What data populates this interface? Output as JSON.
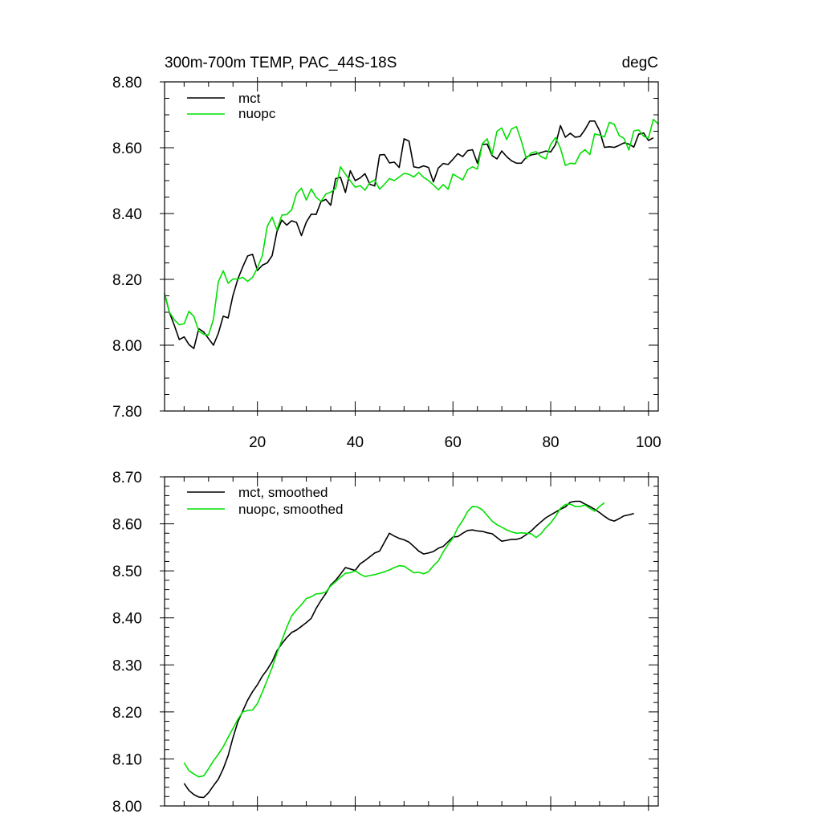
{
  "colors": {
    "mct": "#000000",
    "nuopc": "#00e000",
    "background": "#ffffff"
  },
  "chart_data": [
    {
      "type": "line",
      "title": "300m-700m TEMP, PAC_44S-18S",
      "units": "degC",
      "xlabel": "",
      "ylabel": "",
      "xlim": [
        1,
        102
      ],
      "ylim": [
        7.8,
        8.8
      ],
      "xticks": [
        20,
        40,
        60,
        80,
        100
      ],
      "xtick_labels": [
        "20",
        "40",
        "60",
        "80",
        "100"
      ],
      "yticks": [
        7.8,
        8.0,
        8.2,
        8.4,
        8.6,
        8.8
      ],
      "ytick_labels": [
        "7.80",
        "8.00",
        "8.20",
        "8.40",
        "8.60",
        "8.80"
      ],
      "legend_position": "top-left",
      "x_start": 1,
      "series": [
        {
          "name": "mct",
          "color": "#000000",
          "values": [
            8.157,
            8.099,
            8.06,
            8.017,
            8.025,
            8.002,
            7.99,
            8.05,
            8.04,
            8.02,
            8.0,
            8.036,
            8.088,
            8.083,
            8.151,
            8.201,
            8.238,
            8.271,
            8.276,
            8.227,
            8.243,
            8.25,
            8.272,
            8.345,
            8.38,
            8.365,
            8.378,
            8.373,
            8.333,
            8.374,
            8.398,
            8.397,
            8.436,
            8.443,
            8.425,
            8.506,
            8.51,
            8.464,
            8.53,
            8.5,
            8.508,
            8.521,
            8.489,
            8.484,
            8.578,
            8.579,
            8.554,
            8.556,
            8.54,
            8.627,
            8.62,
            8.542,
            8.539,
            8.545,
            8.54,
            8.496,
            8.538,
            8.552,
            8.549,
            8.565,
            8.582,
            8.573,
            8.591,
            8.594,
            8.553,
            8.61,
            8.611,
            8.576,
            8.566,
            8.59,
            8.573,
            8.56,
            8.553,
            8.553,
            8.571,
            8.578,
            8.581,
            8.585,
            8.59,
            8.587,
            8.61,
            8.667,
            8.632,
            8.644,
            8.632,
            8.634,
            8.655,
            8.681,
            8.681,
            8.652,
            8.601,
            8.603,
            8.601,
            8.607,
            8.615,
            8.611,
            8.602,
            8.641,
            8.645,
            8.622,
            8.63
          ]
        },
        {
          "name": "nuopc",
          "color": "#00e000",
          "values": [
            8.157,
            8.1,
            8.077,
            8.062,
            8.065,
            8.103,
            8.087,
            8.043,
            8.033,
            8.031,
            8.079,
            8.193,
            8.226,
            8.188,
            8.201,
            8.201,
            8.206,
            8.194,
            8.206,
            8.235,
            8.272,
            8.361,
            8.389,
            8.35,
            8.395,
            8.397,
            8.411,
            8.461,
            8.477,
            8.441,
            8.475,
            8.449,
            8.437,
            8.459,
            8.465,
            8.476,
            8.542,
            8.52,
            8.499,
            8.48,
            8.485,
            8.471,
            8.494,
            8.502,
            8.474,
            8.489,
            8.506,
            8.5,
            8.511,
            8.522,
            8.519,
            8.511,
            8.525,
            8.51,
            8.5,
            8.487,
            8.472,
            8.488,
            8.474,
            8.52,
            8.511,
            8.502,
            8.533,
            8.542,
            8.535,
            8.612,
            8.627,
            8.579,
            8.65,
            8.66,
            8.625,
            8.657,
            8.664,
            8.62,
            8.567,
            8.584,
            8.588,
            8.573,
            8.566,
            8.61,
            8.631,
            8.598,
            8.546,
            8.553,
            8.551,
            8.582,
            8.594,
            8.579,
            8.642,
            8.638,
            8.633,
            8.677,
            8.671,
            8.637,
            8.628,
            8.593,
            8.651,
            8.654,
            8.635,
            8.629,
            8.686,
            8.672
          ]
        }
      ]
    },
    {
      "type": "line",
      "title": "",
      "xlabel": "",
      "ylabel": "",
      "xlim": [
        1,
        102
      ],
      "ylim": [
        8.0,
        8.7
      ],
      "xticks": [
        20,
        40,
        60,
        80,
        100
      ],
      "yticks": [
        8.0,
        8.1,
        8.2,
        8.3,
        8.4,
        8.5,
        8.6,
        8.7
      ],
      "ytick_labels": [
        "8.00",
        "8.10",
        "8.20",
        "8.30",
        "8.40",
        "8.50",
        "8.60",
        "8.70"
      ],
      "legend_position": "top-left",
      "x_start": 5,
      "series": [
        {
          "name": "mct, smoothed",
          "color": "#000000",
          "values": [
            8.048,
            8.033,
            8.024,
            8.019,
            8.018,
            8.028,
            8.043,
            8.057,
            8.079,
            8.107,
            8.145,
            8.179,
            8.202,
            8.225,
            8.243,
            8.258,
            8.276,
            8.29,
            8.307,
            8.33,
            8.345,
            8.358,
            8.369,
            8.374,
            8.382,
            8.39,
            8.399,
            8.42,
            8.437,
            8.452,
            8.47,
            8.48,
            8.493,
            8.507,
            8.504,
            8.501,
            8.515,
            8.522,
            8.53,
            8.538,
            8.542,
            8.561,
            8.58,
            8.574,
            8.569,
            8.566,
            8.561,
            8.552,
            8.542,
            8.536,
            8.538,
            8.541,
            8.548,
            8.552,
            8.562,
            8.572,
            8.573,
            8.58,
            8.586,
            8.587,
            8.585,
            8.584,
            8.581,
            8.579,
            8.571,
            8.563,
            8.565,
            8.567,
            8.567,
            8.57,
            8.577,
            8.585,
            8.595,
            8.604,
            8.613,
            8.619,
            8.625,
            8.631,
            8.636,
            8.646,
            8.648,
            8.648,
            8.642,
            8.637,
            8.631,
            8.624,
            8.616,
            8.609,
            8.606,
            8.611,
            8.617,
            8.619,
            8.622
          ]
        },
        {
          "name": "nuopc, smoothed",
          "color": "#00e000",
          "values": [
            8.092,
            8.075,
            8.068,
            8.062,
            8.064,
            8.079,
            8.096,
            8.11,
            8.126,
            8.146,
            8.165,
            8.184,
            8.2,
            8.203,
            8.204,
            8.218,
            8.242,
            8.268,
            8.294,
            8.325,
            8.352,
            8.38,
            8.404,
            8.417,
            8.428,
            8.441,
            8.445,
            8.451,
            8.452,
            8.455,
            8.468,
            8.477,
            8.486,
            8.495,
            8.496,
            8.5,
            8.493,
            8.488,
            8.49,
            8.492,
            8.495,
            8.498,
            8.502,
            8.507,
            8.511,
            8.51,
            8.503,
            8.496,
            8.497,
            8.494,
            8.498,
            8.511,
            8.521,
            8.54,
            8.556,
            8.57,
            8.592,
            8.607,
            8.626,
            8.637,
            8.636,
            8.63,
            8.618,
            8.606,
            8.598,
            8.593,
            8.587,
            8.583,
            8.58,
            8.581,
            8.58,
            8.579,
            8.571,
            8.579,
            8.592,
            8.602,
            8.616,
            8.633,
            8.641,
            8.642,
            8.637,
            8.637,
            8.64,
            8.633,
            8.627,
            8.637,
            8.645
          ]
        }
      ]
    }
  ]
}
